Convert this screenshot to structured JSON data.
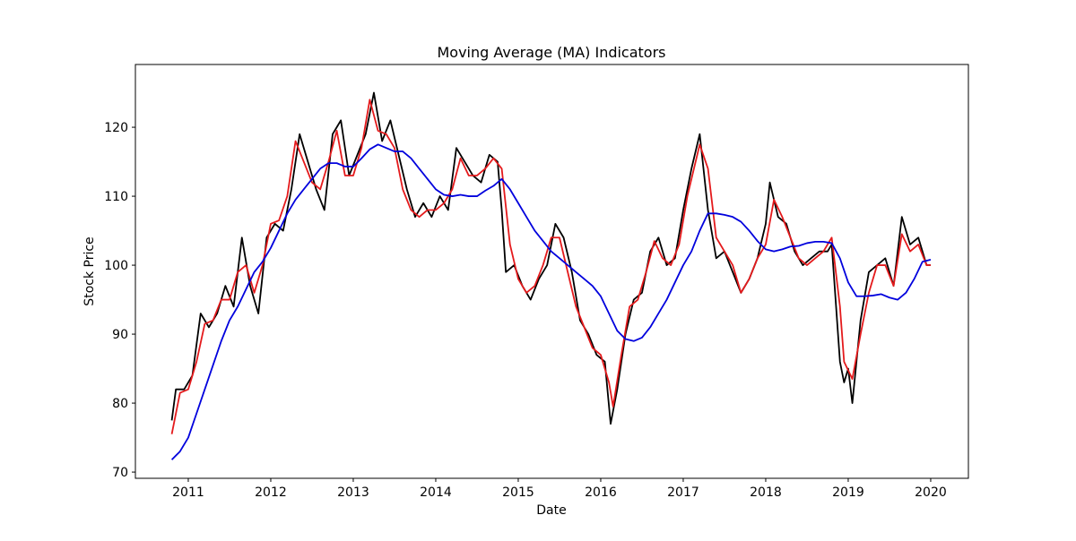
{
  "chart_data": {
    "type": "line",
    "title": "Moving Average (MA) Indicators",
    "xlabel": "Date",
    "ylabel": "Stock Price",
    "xlim": [
      2010.359,
      2020.457
    ],
    "xticks": [
      2011,
      2012,
      2013,
      2014,
      2015,
      2016,
      2017,
      2018,
      2019,
      2020
    ],
    "ylim": [
      69.1,
      129.1
    ],
    "yticks": [
      70,
      80,
      90,
      100,
      110,
      120
    ],
    "series": [
      {
        "color": "#000000",
        "x": [
          2010.8,
          2010.85,
          2010.95,
          2011.05,
          2011.15,
          2011.25,
          2011.35,
          2011.45,
          2011.55,
          2011.65,
          2011.75,
          2011.85,
          2011.95,
          2012.05,
          2012.15,
          2012.25,
          2012.35,
          2012.45,
          2012.55,
          2012.65,
          2012.75,
          2012.85,
          2012.95,
          2013.05,
          2013.15,
          2013.25,
          2013.35,
          2013.45,
          2013.55,
          2013.65,
          2013.75,
          2013.85,
          2013.95,
          2014.05,
          2014.15,
          2014.25,
          2014.35,
          2014.45,
          2014.55,
          2014.65,
          2014.75,
          2014.8,
          2014.85,
          2014.95,
          2015.05,
          2015.15,
          2015.25,
          2015.35,
          2015.45,
          2015.55,
          2015.65,
          2015.75,
          2015.85,
          2015.95,
          2016.05,
          2016.12,
          2016.2,
          2016.3,
          2016.4,
          2016.5,
          2016.6,
          2016.7,
          2016.8,
          2016.9,
          2017.0,
          2017.1,
          2017.2,
          2017.3,
          2017.4,
          2017.5,
          2017.6,
          2017.7,
          2017.8,
          2017.9,
          2018.0,
          2018.05,
          2018.15,
          2018.25,
          2018.35,
          2018.45,
          2018.55,
          2018.65,
          2018.75,
          2018.8,
          2018.9,
          2018.95,
          2019.0,
          2019.05,
          2019.15,
          2019.25,
          2019.35,
          2019.45,
          2019.55,
          2019.65,
          2019.75,
          2019.85,
          2019.95,
          2020.0
        ],
        "values": [
          77.5,
          82,
          82,
          84,
          93,
          91,
          93,
          97,
          94,
          104,
          97,
          93,
          104,
          106,
          105,
          111,
          119,
          115,
          111,
          108,
          119,
          121,
          113,
          116,
          119,
          125,
          118,
          121,
          116,
          111,
          107,
          109,
          107,
          110,
          108,
          117,
          115,
          113,
          112,
          116,
          115,
          108,
          99,
          100,
          97,
          95,
          98,
          100,
          106,
          104,
          99,
          92,
          90,
          87,
          86,
          77,
          82,
          90,
          95,
          96,
          102,
          104,
          100,
          101,
          108,
          114,
          119,
          108,
          101,
          102,
          99,
          96,
          98,
          101,
          106,
          112,
          107,
          106,
          102,
          100,
          101,
          102,
          102,
          103,
          86,
          83,
          85,
          80,
          92,
          99,
          100,
          101,
          97,
          107,
          103,
          104,
          100,
          100
        ]
      },
      {
        "color": "#e41a1c",
        "x": [
          2010.8,
          2010.9,
          2011.0,
          2011.1,
          2011.2,
          2011.3,
          2011.4,
          2011.5,
          2011.6,
          2011.7,
          2011.8,
          2011.9,
          2012.0,
          2012.1,
          2012.2,
          2012.3,
          2012.4,
          2012.5,
          2012.6,
          2012.7,
          2012.8,
          2012.9,
          2013.0,
          2013.1,
          2013.2,
          2013.3,
          2013.4,
          2013.5,
          2013.6,
          2013.7,
          2013.8,
          2013.9,
          2014.0,
          2014.1,
          2014.2,
          2014.3,
          2014.4,
          2014.5,
          2014.6,
          2014.7,
          2014.8,
          2014.9,
          2015.0,
          2015.1,
          2015.2,
          2015.3,
          2015.4,
          2015.5,
          2015.6,
          2015.7,
          2015.8,
          2015.9,
          2016.0,
          2016.1,
          2016.15,
          2016.25,
          2016.35,
          2016.45,
          2016.55,
          2016.65,
          2016.75,
          2016.85,
          2016.95,
          2017.05,
          2017.2,
          2017.3,
          2017.4,
          2017.5,
          2017.6,
          2017.7,
          2017.8,
          2017.9,
          2018.0,
          2018.1,
          2018.2,
          2018.3,
          2018.4,
          2018.5,
          2018.6,
          2018.7,
          2018.8,
          2018.9,
          2018.95,
          2019.05,
          2019.15,
          2019.25,
          2019.35,
          2019.45,
          2019.55,
          2019.65,
          2019.75,
          2019.85,
          2019.95,
          2020.0
        ],
        "values": [
          75.5,
          81.5,
          82,
          86,
          91.5,
          92,
          95,
          95,
          99,
          100,
          96,
          100,
          106,
          106.5,
          110,
          118,
          115,
          112,
          111,
          115,
          119.5,
          113,
          113,
          117,
          124,
          119.5,
          119,
          117,
          111,
          108,
          107,
          108,
          108,
          109,
          111,
          115.5,
          113,
          113,
          114,
          115.5,
          114,
          103,
          98,
          96,
          97,
          100,
          104,
          104,
          99,
          94,
          91,
          88,
          87,
          83,
          79.5,
          87,
          94,
          95,
          99,
          103.5,
          101,
          100,
          103,
          110,
          117.5,
          114,
          104,
          102,
          100,
          96,
          98,
          101,
          103,
          109.5,
          107,
          104,
          101,
          100,
          101,
          102,
          104,
          94,
          86,
          83.5,
          90,
          96,
          100,
          100,
          97,
          104.5,
          102,
          103,
          100,
          100
        ]
      },
      {
        "color": "#0000dd",
        "x": [
          2010.8,
          2010.9,
          2011.0,
          2011.1,
          2011.2,
          2011.3,
          2011.4,
          2011.5,
          2011.6,
          2011.7,
          2011.8,
          2011.9,
          2012.0,
          2012.1,
          2012.2,
          2012.3,
          2012.4,
          2012.5,
          2012.6,
          2012.7,
          2012.8,
          2012.9,
          2013.0,
          2013.1,
          2013.2,
          2013.3,
          2013.4,
          2013.5,
          2013.6,
          2013.7,
          2013.8,
          2013.9,
          2014.0,
          2014.1,
          2014.2,
          2014.3,
          2014.4,
          2014.5,
          2014.6,
          2014.7,
          2014.8,
          2014.9,
          2015.0,
          2015.1,
          2015.2,
          2015.3,
          2015.4,
          2015.5,
          2015.6,
          2015.7,
          2015.8,
          2015.9,
          2016.0,
          2016.1,
          2016.2,
          2016.3,
          2016.4,
          2016.5,
          2016.6,
          2016.7,
          2016.8,
          2016.9,
          2017.0,
          2017.1,
          2017.2,
          2017.3,
          2017.4,
          2017.5,
          2017.6,
          2017.7,
          2017.8,
          2017.9,
          2018.0,
          2018.1,
          2018.2,
          2018.3,
          2018.4,
          2018.5,
          2018.6,
          2018.7,
          2018.8,
          2018.9,
          2019.0,
          2019.1,
          2019.2,
          2019.3,
          2019.4,
          2019.5,
          2019.6,
          2019.7,
          2019.8,
          2019.9,
          2020.0
        ],
        "values": [
          71.8,
          73,
          75,
          78.5,
          82,
          85.5,
          89,
          92,
          94,
          96.5,
          99,
          100.5,
          102.5,
          105,
          107.5,
          109.5,
          111,
          112.5,
          114,
          114.8,
          114.8,
          114.3,
          114.3,
          115.5,
          116.8,
          117.5,
          117,
          116.5,
          116.5,
          115.5,
          114,
          112.5,
          111,
          110.2,
          110,
          110.2,
          110,
          110,
          110.8,
          111.5,
          112.5,
          111,
          109,
          107,
          105,
          103.5,
          102,
          101,
          100,
          99,
          98,
          97,
          95.5,
          93,
          90.5,
          89.3,
          89,
          89.5,
          91,
          93,
          95,
          97.5,
          100,
          102,
          105,
          107.5,
          107.5,
          107.3,
          107,
          106.3,
          105,
          103.5,
          102.3,
          102,
          102.3,
          102.7,
          102.8,
          103.2,
          103.4,
          103.4,
          103.2,
          101,
          97.5,
          95.5,
          95.5,
          95.6,
          95.8,
          95.3,
          95,
          96,
          98,
          100.5,
          100.8
        ]
      }
    ]
  }
}
